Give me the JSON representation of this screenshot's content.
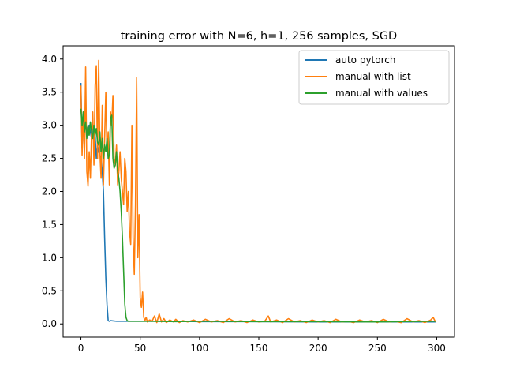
{
  "chart_data": {
    "type": "line",
    "title": "training error with N=6, h=1, 256 samples, SGD",
    "xlabel": "",
    "ylabel": "",
    "xlim": [
      -15,
      315
    ],
    "ylim": [
      -0.2,
      4.2
    ],
    "xticks": [
      0,
      50,
      100,
      150,
      200,
      250,
      300
    ],
    "yticks": [
      0.0,
      0.5,
      1.0,
      1.5,
      2.0,
      2.5,
      3.0,
      3.5,
      4.0
    ],
    "grid": false,
    "legend": "top-right",
    "series": [
      {
        "name": "auto pytorch",
        "color": "#1f77b4",
        "points": [
          [
            0,
            3.64
          ],
          [
            1,
            2.65
          ],
          [
            2,
            3.1
          ],
          [
            3,
            2.9
          ],
          [
            4,
            3.0
          ],
          [
            5,
            2.95
          ],
          [
            6,
            2.85
          ],
          [
            7,
            3.0
          ],
          [
            8,
            2.9
          ],
          [
            9,
            2.8
          ],
          [
            10,
            3.05
          ],
          [
            11,
            2.7
          ],
          [
            12,
            2.85
          ],
          [
            13,
            2.5
          ],
          [
            14,
            2.7
          ],
          [
            15,
            2.6
          ],
          [
            16,
            2.55
          ],
          [
            17,
            2.5
          ],
          [
            18,
            2.3
          ],
          [
            19,
            2.0
          ],
          [
            20,
            1.3
          ],
          [
            21,
            0.7
          ],
          [
            22,
            0.3
          ],
          [
            23,
            0.05
          ],
          [
            24,
            0.04
          ],
          [
            25,
            0.05
          ],
          [
            30,
            0.04
          ],
          [
            40,
            0.04
          ],
          [
            60,
            0.04
          ],
          [
            80,
            0.04
          ],
          [
            100,
            0.035
          ],
          [
            150,
            0.035
          ],
          [
            200,
            0.03
          ],
          [
            250,
            0.03
          ],
          [
            299,
            0.03
          ]
        ]
      },
      {
        "name": "manual with list",
        "color": "#ff7f0e",
        "points": [
          [
            0,
            3.6
          ],
          [
            1,
            2.55
          ],
          [
            2,
            3.2
          ],
          [
            3,
            2.5
          ],
          [
            4,
            3.88
          ],
          [
            5,
            2.3
          ],
          [
            6,
            2.08
          ],
          [
            7,
            2.6
          ],
          [
            8,
            2.2
          ],
          [
            9,
            2.9
          ],
          [
            10,
            3.2
          ],
          [
            11,
            2.4
          ],
          [
            12,
            3.6
          ],
          [
            13,
            3.9
          ],
          [
            14,
            2.5
          ],
          [
            15,
            3.98
          ],
          [
            16,
            2.6
          ],
          [
            17,
            2.2
          ],
          [
            18,
            3.3
          ],
          [
            19,
            2.1
          ],
          [
            20,
            2.8
          ],
          [
            21,
            3.5
          ],
          [
            22,
            2.6
          ],
          [
            23,
            2.9
          ],
          [
            24,
            2.1
          ],
          [
            25,
            3.2
          ],
          [
            26,
            3.0
          ],
          [
            27,
            3.45
          ],
          [
            28,
            2.5
          ],
          [
            29,
            2.4
          ],
          [
            30,
            2.7
          ],
          [
            31,
            2.1
          ],
          [
            32,
            2.3
          ],
          [
            33,
            2.6
          ],
          [
            34,
            2.2
          ],
          [
            35,
            2.0
          ],
          [
            36,
            1.8
          ],
          [
            37,
            2.5
          ],
          [
            38,
            2.3
          ],
          [
            39,
            1.7
          ],
          [
            40,
            2.0
          ],
          [
            41,
            1.4
          ],
          [
            42,
            1.2
          ],
          [
            43,
            3.0
          ],
          [
            44,
            1.3
          ],
          [
            45,
            0.75
          ],
          [
            46,
            1.8
          ],
          [
            47,
            3.72
          ],
          [
            48,
            1.0
          ],
          [
            49,
            1.65
          ],
          [
            50,
            0.4
          ],
          [
            51,
            0.25
          ],
          [
            52,
            0.48
          ],
          [
            53,
            0.1
          ],
          [
            54,
            0.05
          ],
          [
            55,
            0.1
          ],
          [
            56,
            0.03
          ],
          [
            58,
            0.06
          ],
          [
            60,
            0.04
          ],
          [
            62,
            0.12
          ],
          [
            64,
            0.02
          ],
          [
            66,
            0.15
          ],
          [
            68,
            0.03
          ],
          [
            70,
            0.08
          ],
          [
            72,
            0.02
          ],
          [
            75,
            0.06
          ],
          [
            78,
            0.03
          ],
          [
            80,
            0.07
          ],
          [
            83,
            0.02
          ],
          [
            86,
            0.05
          ],
          [
            90,
            0.03
          ],
          [
            95,
            0.06
          ],
          [
            100,
            0.02
          ],
          [
            105,
            0.07
          ],
          [
            110,
            0.03
          ],
          [
            115,
            0.05
          ],
          [
            120,
            0.02
          ],
          [
            125,
            0.08
          ],
          [
            130,
            0.03
          ],
          [
            135,
            0.05
          ],
          [
            140,
            0.02
          ],
          [
            145,
            0.06
          ],
          [
            150,
            0.03
          ],
          [
            155,
            0.04
          ],
          [
            158,
            0.12
          ],
          [
            160,
            0.03
          ],
          [
            165,
            0.06
          ],
          [
            170,
            0.02
          ],
          [
            175,
            0.08
          ],
          [
            180,
            0.03
          ],
          [
            185,
            0.05
          ],
          [
            190,
            0.02
          ],
          [
            195,
            0.06
          ],
          [
            200,
            0.03
          ],
          [
            205,
            0.05
          ],
          [
            210,
            0.02
          ],
          [
            215,
            0.07
          ],
          [
            220,
            0.03
          ],
          [
            225,
            0.04
          ],
          [
            230,
            0.02
          ],
          [
            235,
            0.06
          ],
          [
            240,
            0.03
          ],
          [
            245,
            0.05
          ],
          [
            250,
            0.02
          ],
          [
            255,
            0.07
          ],
          [
            260,
            0.03
          ],
          [
            265,
            0.04
          ],
          [
            270,
            0.02
          ],
          [
            275,
            0.08
          ],
          [
            280,
            0.03
          ],
          [
            285,
            0.05
          ],
          [
            290,
            0.02
          ],
          [
            295,
            0.06
          ],
          [
            297,
            0.1
          ],
          [
            299,
            0.03
          ]
        ]
      },
      {
        "name": "manual with values",
        "color": "#2ca02c",
        "points": [
          [
            0,
            3.25
          ],
          [
            1,
            3.0
          ],
          [
            2,
            3.2
          ],
          [
            3,
            2.9
          ],
          [
            4,
            3.05
          ],
          [
            5,
            2.8
          ],
          [
            6,
            3.0
          ],
          [
            7,
            2.85
          ],
          [
            8,
            3.05
          ],
          [
            9,
            2.9
          ],
          [
            10,
            2.8
          ],
          [
            11,
            3.0
          ],
          [
            12,
            2.85
          ],
          [
            13,
            2.95
          ],
          [
            14,
            2.75
          ],
          [
            15,
            2.7
          ],
          [
            16,
            2.9
          ],
          [
            17,
            2.6
          ],
          [
            18,
            2.8
          ],
          [
            19,
            2.5
          ],
          [
            20,
            2.7
          ],
          [
            21,
            2.6
          ],
          [
            22,
            2.8
          ],
          [
            23,
            2.5
          ],
          [
            24,
            2.55
          ],
          [
            25,
            3.1
          ],
          [
            26,
            3.15
          ],
          [
            27,
            2.5
          ],
          [
            28,
            2.35
          ],
          [
            29,
            2.4
          ],
          [
            30,
            2.6
          ],
          [
            31,
            2.3
          ],
          [
            32,
            2.2
          ],
          [
            33,
            2.0
          ],
          [
            34,
            1.7
          ],
          [
            35,
            1.3
          ],
          [
            36,
            0.8
          ],
          [
            37,
            0.3
          ],
          [
            38,
            0.1
          ],
          [
            39,
            0.05
          ],
          [
            40,
            0.04
          ],
          [
            45,
            0.04
          ],
          [
            60,
            0.04
          ],
          [
            80,
            0.035
          ],
          [
            100,
            0.04
          ],
          [
            150,
            0.035
          ],
          [
            200,
            0.035
          ],
          [
            250,
            0.03
          ],
          [
            299,
            0.04
          ]
        ]
      }
    ]
  }
}
